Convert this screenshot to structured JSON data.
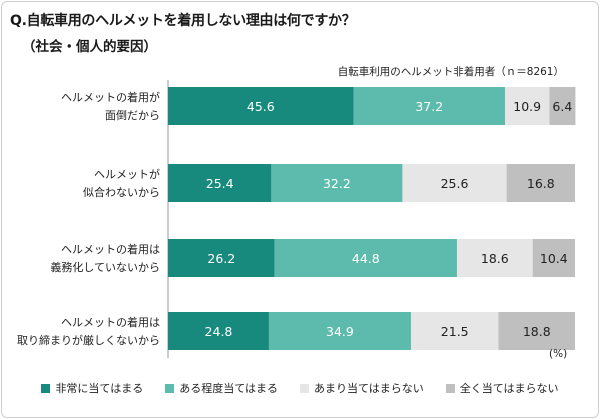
{
  "title": "Q.自転車用のヘルメットを着用しない理由は何ですか？",
  "subtitle": "（社会・個人的要因）",
  "sample_note": "自転車利用のヘルメット非着用者（ｎ＝8261）",
  "unit_label": "(%)",
  "chart_data": {
    "type": "bar",
    "orientation": "horizontal",
    "stacked": true,
    "xlim": [
      0,
      100
    ],
    "categories": [
      [
        "ヘルメットの着用が",
        "面倒だから"
      ],
      [
        "ヘルメットが",
        "似合わないから"
      ],
      [
        "ヘルメットの着用は",
        "義務化していないから"
      ],
      [
        "ヘルメットの着用は",
        "取り締まりが厳しくないから"
      ]
    ],
    "series": [
      {
        "name": "非常に当てはまる",
        "color": "#17897d",
        "label_color": "#ffffff",
        "values": [
          45.6,
          25.4,
          26.2,
          24.8
        ]
      },
      {
        "name": "ある程度当てはまる",
        "color": "#5dbbad",
        "label_color": "#ffffff",
        "values": [
          37.2,
          32.2,
          44.8,
          34.9
        ]
      },
      {
        "name": "あまり当てはまらない",
        "color": "#e6e6e6",
        "label_color": "#222222",
        "values": [
          10.9,
          25.6,
          18.6,
          21.5
        ]
      },
      {
        "name": "全く当てはまらない",
        "color": "#bfbfbf",
        "label_color": "#222222",
        "values": [
          6.4,
          16.8,
          10.4,
          18.8
        ]
      }
    ]
  }
}
